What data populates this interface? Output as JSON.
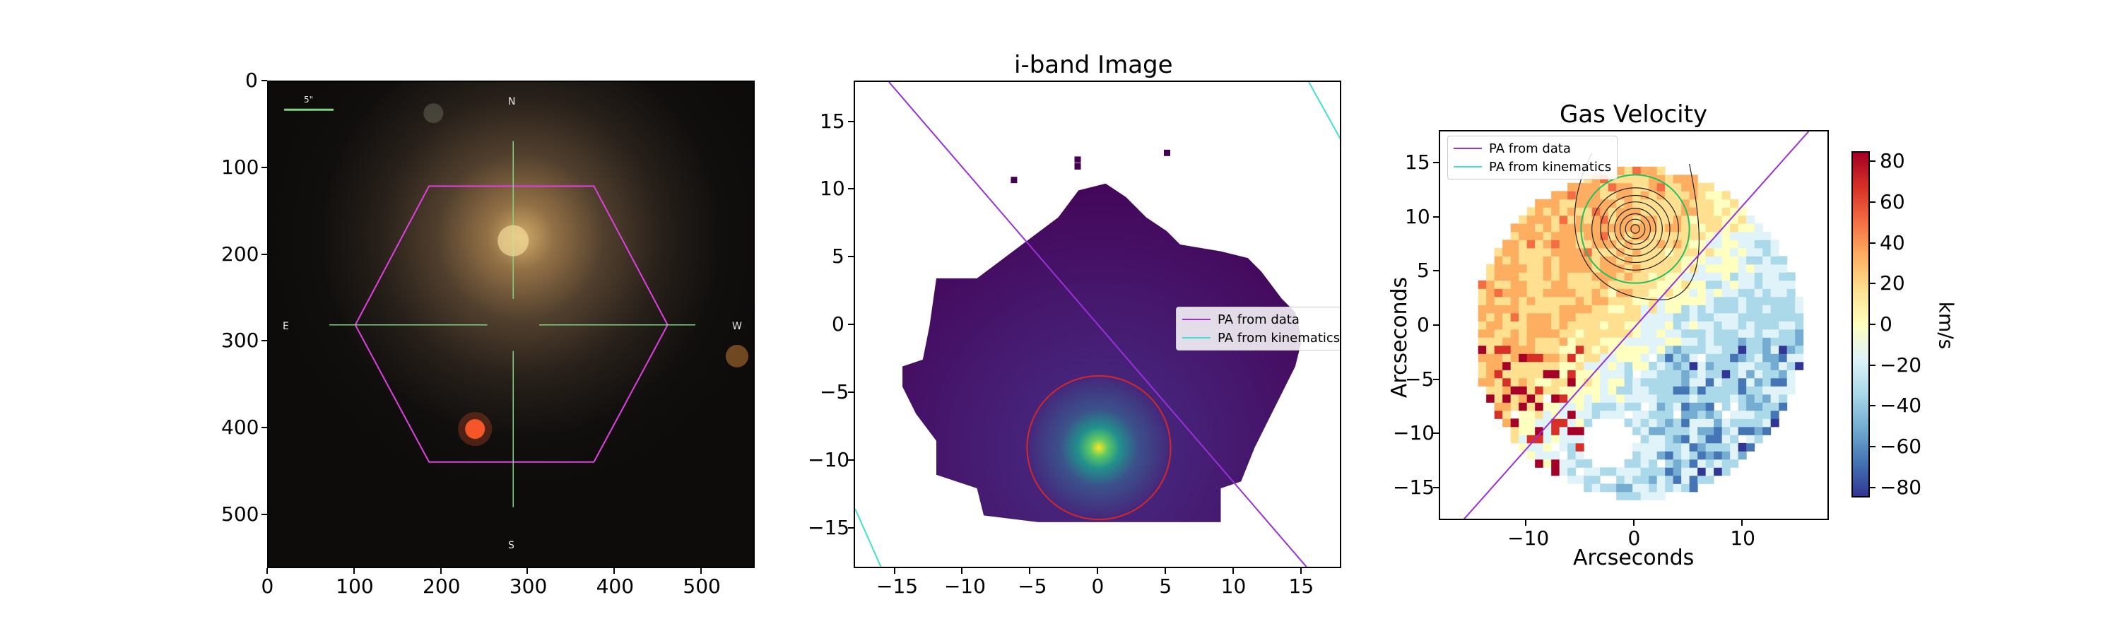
{
  "chart_data": [
    {
      "type": "image",
      "title": "",
      "xticks": [
        "0",
        "100",
        "200",
        "300",
        "400",
        "500"
      ],
      "yticks": [
        "0",
        "100",
        "200",
        "300",
        "400",
        "500"
      ],
      "xlim": [
        0,
        562
      ],
      "ylim": [
        0,
        562
      ],
      "scalebar_label": "5\"",
      "compass": {
        "n": "N",
        "s": "S",
        "e": "E",
        "w": "W"
      },
      "hexagon_vertices": [
        [
          185,
          120
        ],
        [
          375,
          120
        ],
        [
          460,
          280
        ],
        [
          375,
          438
        ],
        [
          185,
          438
        ],
        [
          100,
          280
        ]
      ],
      "colors": {
        "hexagon": "#e040e0",
        "crosshair": "#7ed67e",
        "scalebar": "#7ed67e"
      }
    },
    {
      "type": "heatmap",
      "title": "i-band Image",
      "xticks": [
        "−15",
        "−10",
        "−5",
        "0",
        "5",
        "10",
        "15"
      ],
      "yticks": [
        "−15",
        "−10",
        "−5",
        "0",
        "5",
        "10",
        "15"
      ],
      "xlim": [
        -18,
        18
      ],
      "ylim": [
        18,
        -18
      ],
      "peak": [
        0,
        -9
      ],
      "ellipse": {
        "center": [
          0,
          -9
        ],
        "radius": 5.3,
        "color": "#d62728"
      },
      "lines": [
        {
          "name": "PA from data",
          "color": "#9b30d9",
          "x": [
            -15.5,
            15.5
          ],
          "y": [
            18,
            -18
          ]
        },
        {
          "name": "PA from kinematics",
          "color": "#40e0d0",
          "x": [
            -16,
            -18
          ],
          "y": [
            -18,
            -13.5
          ]
        },
        {
          "name": "PA from kinematics",
          "color": "#40e0d0",
          "x": [
            15.5,
            18
          ],
          "y": [
            18,
            13.5
          ]
        }
      ],
      "legend": [
        "PA from data",
        "PA from kinematics"
      ],
      "legend_position": "right"
    },
    {
      "type": "heatmap",
      "title": "Gas Velocity",
      "xlabel": "Arcseconds",
      "ylabel": "Arcseconds",
      "xticks": [
        "−10",
        "0",
        "10"
      ],
      "yticks": [
        "15",
        "10",
        "5",
        "0",
        "−5",
        "−10",
        "−15"
      ],
      "xlim": [
        -18,
        18
      ],
      "ylim": [
        -18,
        18
      ],
      "colorbar": {
        "label": "km/s",
        "ticks": [
          "80",
          "60",
          "40",
          "20",
          "0",
          "−20",
          "−40",
          "−60",
          "−80"
        ],
        "range": [
          -85,
          85
        ],
        "cmap": [
          "#313695",
          "#4575b4",
          "#74add1",
          "#abd9e9",
          "#e0f3f8",
          "#ffffbf",
          "#fee090",
          "#fdae61",
          "#f46d43",
          "#d73027",
          "#a50026"
        ]
      },
      "contour_center": [
        0,
        9
      ],
      "green_contour_radius": 5,
      "lines": [
        {
          "name": "PA from data",
          "color": "#9b30d9",
          "x": [
            -16,
            16
          ],
          "y": [
            -18,
            18
          ]
        }
      ],
      "legend": [
        "PA from data",
        "PA from kinematics"
      ],
      "legend_colors": [
        "#9b30d9",
        "#40e0d0"
      ],
      "legend_position": "top-left"
    }
  ]
}
